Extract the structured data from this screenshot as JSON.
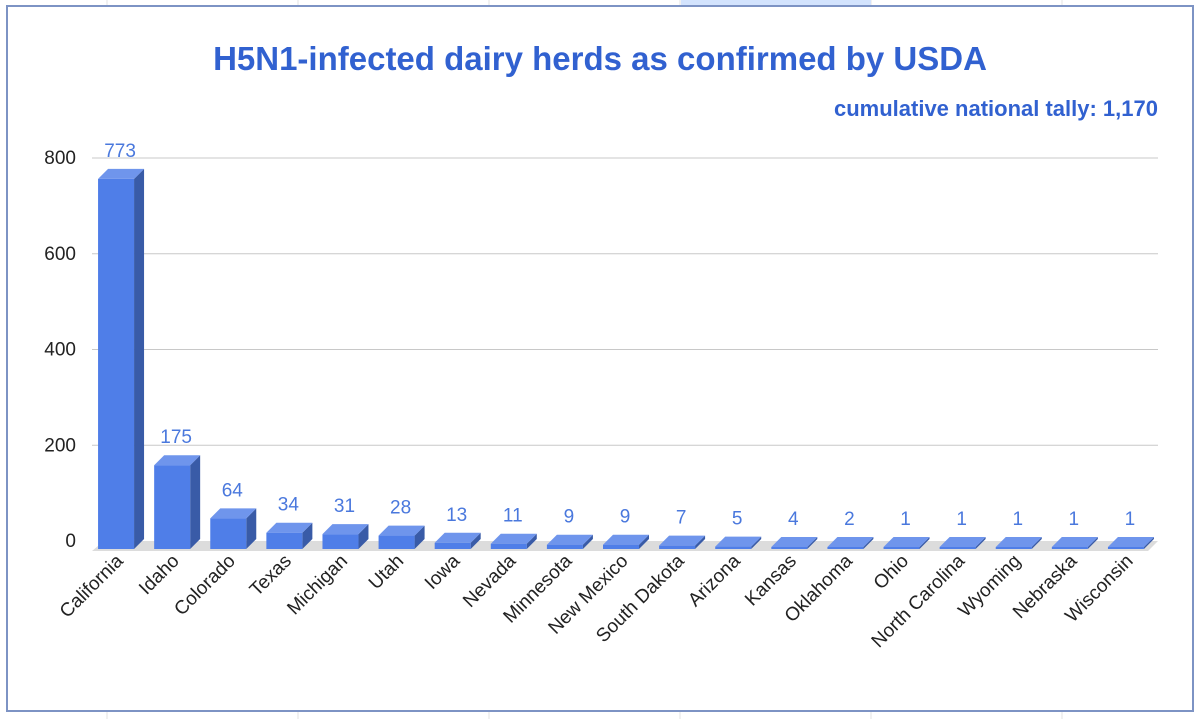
{
  "chart_data": {
    "type": "bar",
    "title": "H5N1-infected dairy herds as confirmed by USDA",
    "subtitle": "cumulative national tally: 1,170",
    "xlabel": "",
    "ylabel": "",
    "ylim": [
      0,
      800
    ],
    "yticks": [
      "0",
      "200",
      "400",
      "600",
      "800"
    ],
    "grid": true,
    "legend": "none",
    "bar_color": "#4f7ee8",
    "label_color": "#4a78dd",
    "categories": [
      "California",
      "Idaho",
      "Colorado",
      "Texas",
      "Michigan",
      "Utah",
      "Iowa",
      "Nevada",
      "Minnesota",
      "New Mexico",
      "South Dakota",
      "Arizona",
      "Kansas",
      "Oklahoma",
      "Ohio",
      "North Carolina",
      "Wyoming",
      "Nebraska",
      "Wisconsin"
    ],
    "values": [
      773,
      175,
      64,
      34,
      31,
      28,
      13,
      11,
      9,
      9,
      7,
      5,
      4,
      2,
      1,
      1,
      1,
      1,
      1
    ],
    "data_labels": [
      "773",
      "175",
      "64",
      "34",
      "31",
      "28",
      "13",
      "11",
      "9",
      "9",
      "7",
      "5",
      "4",
      "2",
      "1",
      "1",
      "1",
      "1",
      "1"
    ]
  }
}
